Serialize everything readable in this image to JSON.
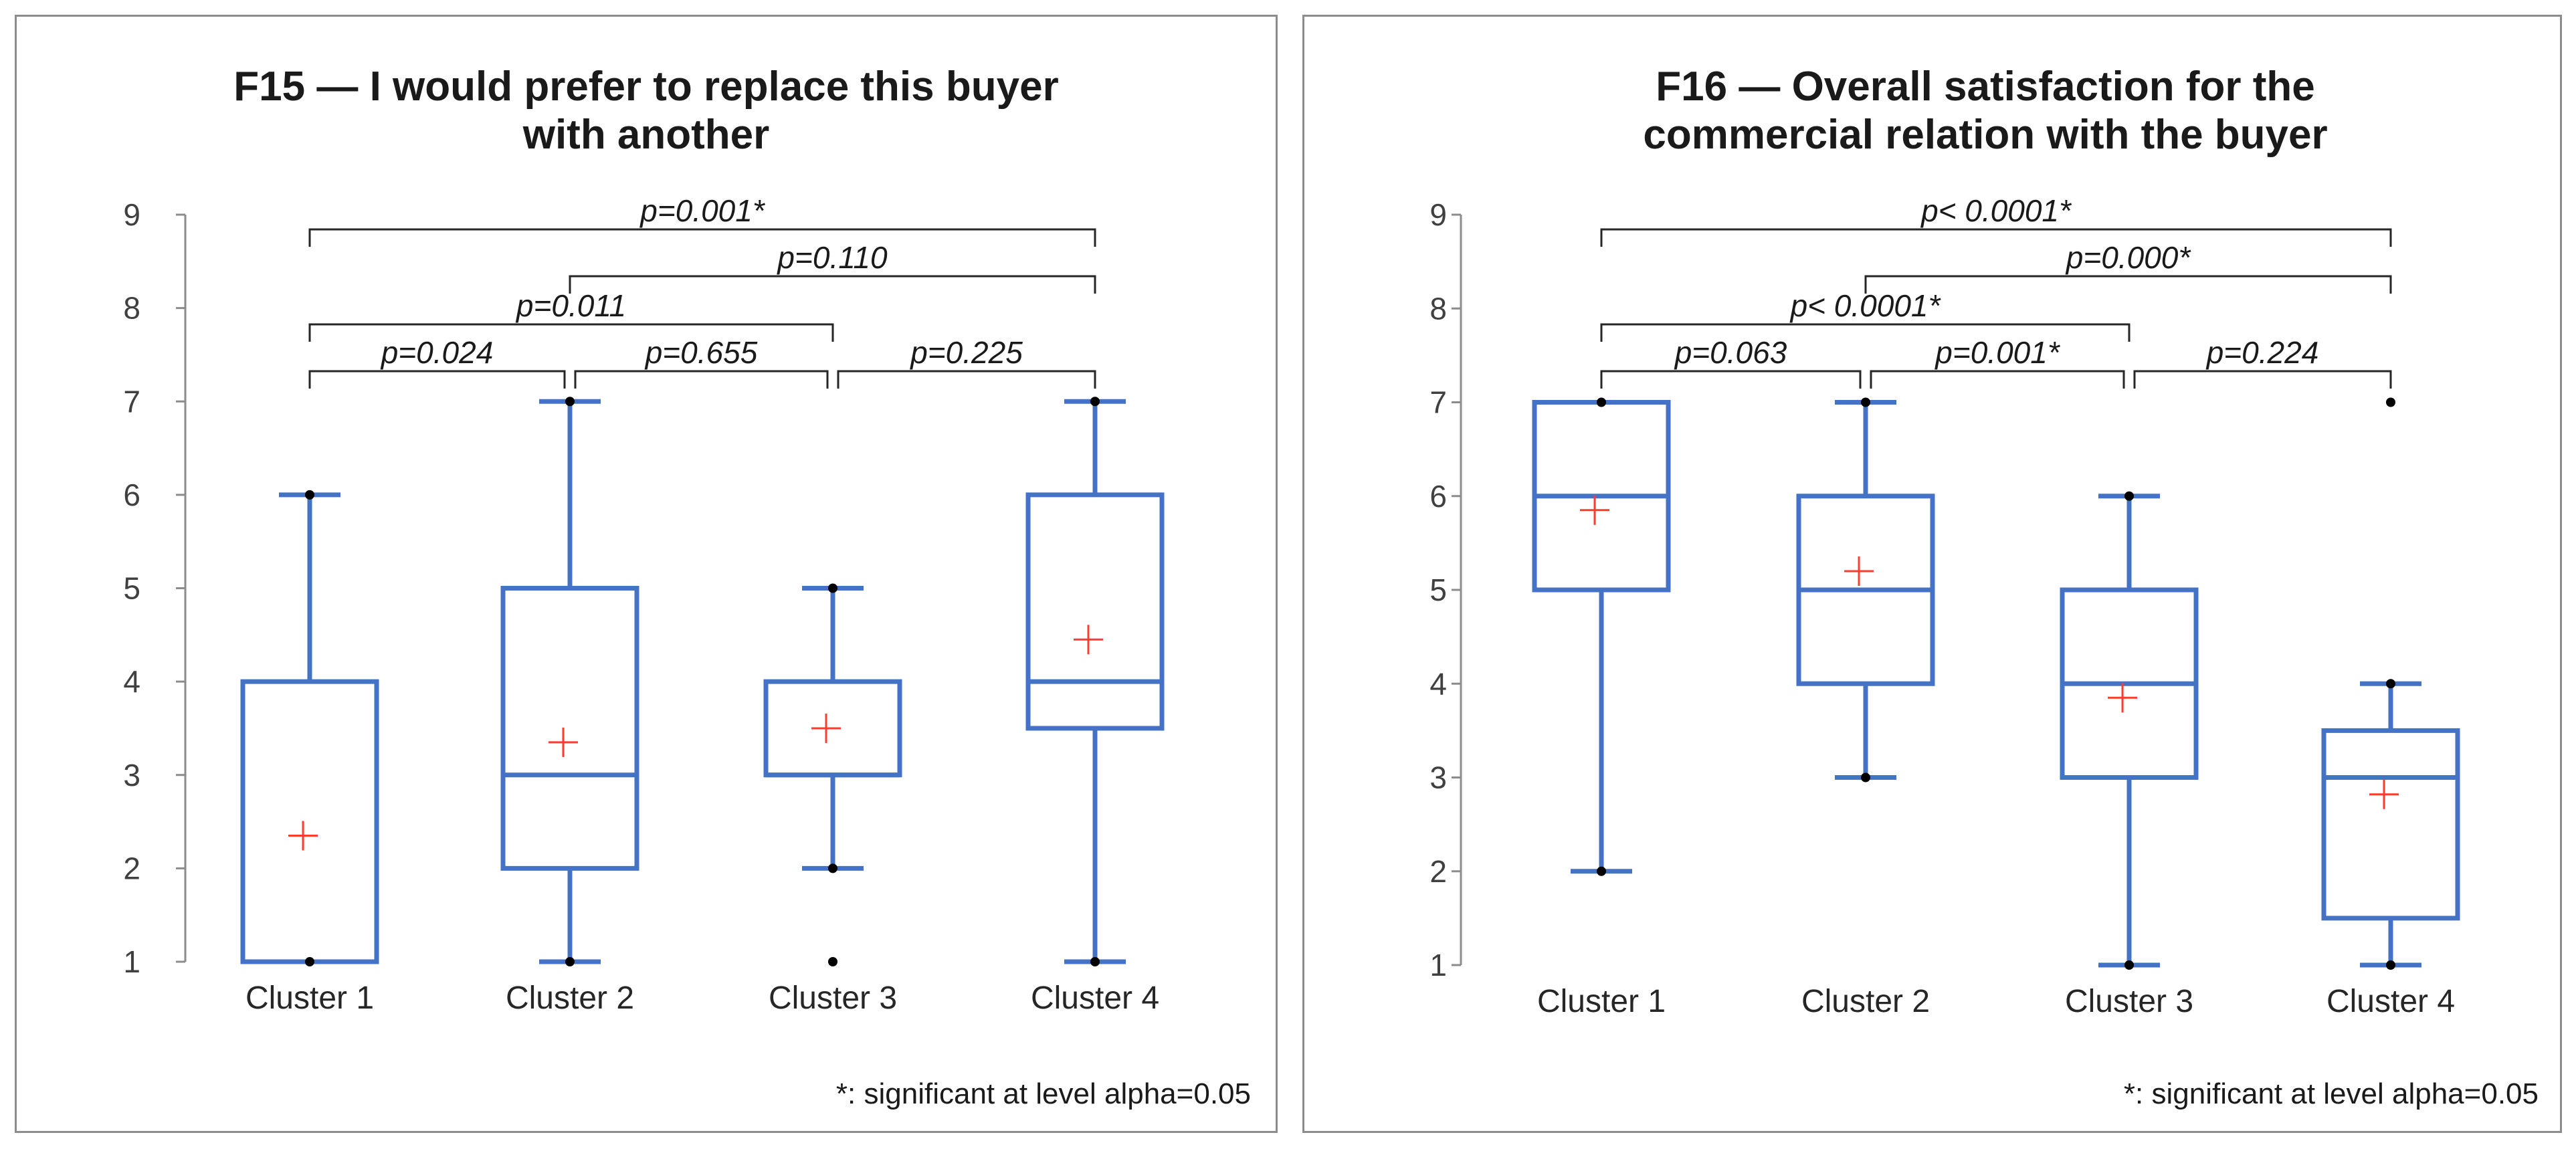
{
  "colors": {
    "box": "#4472C4",
    "mean": "#FF3B30",
    "points": "#000000",
    "axis": "#8c8c8c",
    "bracket": "#262626",
    "border": "#8c8c8c"
  },
  "chart_data": [
    {
      "type": "boxplot",
      "title_lines": [
        "F15 — I would prefer to replace this buyer",
        "with another"
      ],
      "ylim": [
        1,
        9
      ],
      "yticks": [
        "1",
        "2",
        "3",
        "4",
        "5",
        "6",
        "7",
        "8",
        "9"
      ],
      "categories": [
        "Cluster 1",
        "Cluster 2",
        "Cluster 3",
        "Cluster 4"
      ],
      "boxes": [
        {
          "name": "Cluster 1",
          "whisker_low": 1,
          "q1": 1,
          "median": 1,
          "q3": 4,
          "whisker_high": 6,
          "mean": 2.35,
          "outliers": []
        },
        {
          "name": "Cluster 2",
          "whisker_low": 1,
          "q1": 2,
          "median": 3,
          "q3": 5,
          "whisker_high": 7,
          "mean": 3.35,
          "outliers": []
        },
        {
          "name": "Cluster 3",
          "whisker_low": 2,
          "q1": 3,
          "median": 3,
          "q3": 4,
          "whisker_high": 5,
          "mean": 3.5,
          "outliers": [
            1
          ]
        },
        {
          "name": "Cluster 4",
          "whisker_low": 1,
          "q1": 3.5,
          "median": 4,
          "q3": 6,
          "whisker_high": 7,
          "mean": 4.45,
          "outliers": []
        }
      ],
      "comparisons": [
        {
          "from": 0,
          "to": 1,
          "label": "p=0.024"
        },
        {
          "from": 1,
          "to": 2,
          "label": "p=0.655"
        },
        {
          "from": 2,
          "to": 3,
          "label": "p=0.225"
        },
        {
          "from": 0,
          "to": 2,
          "label": "p=0.011"
        },
        {
          "from": 1,
          "to": 3,
          "label": "p=0.110"
        },
        {
          "from": 0,
          "to": 3,
          "label": "p=0.001*"
        }
      ],
      "footnote": "*: significant at level alpha=0.05"
    },
    {
      "type": "boxplot",
      "title_lines": [
        "F16 — Overall satisfaction for the",
        "commercial relation with the buyer"
      ],
      "ylim": [
        1,
        9
      ],
      "yticks": [
        "1",
        "2",
        "3",
        "4",
        "5",
        "6",
        "7",
        "8",
        "9"
      ],
      "categories": [
        "Cluster 1",
        "Cluster 2",
        "Cluster 3",
        "Cluster 4"
      ],
      "boxes": [
        {
          "name": "Cluster 1",
          "whisker_low": 2,
          "q1": 5,
          "median": 6,
          "q3": 7,
          "whisker_high": 7,
          "mean": 5.85,
          "outliers": []
        },
        {
          "name": "Cluster 2",
          "whisker_low": 3,
          "q1": 4,
          "median": 5,
          "q3": 6,
          "whisker_high": 7,
          "mean": 5.2,
          "outliers": []
        },
        {
          "name": "Cluster 3",
          "whisker_low": 1,
          "q1": 3,
          "median": 4,
          "q3": 5,
          "whisker_high": 6,
          "mean": 3.85,
          "outliers": []
        },
        {
          "name": "Cluster 4",
          "whisker_low": 1,
          "q1": 1.5,
          "median": 3,
          "q3": 3.5,
          "whisker_high": 4,
          "mean": 2.82,
          "outliers": [
            7
          ]
        }
      ],
      "comparisons": [
        {
          "from": 0,
          "to": 1,
          "label": "p=0.063"
        },
        {
          "from": 1,
          "to": 2,
          "label": "p=0.001*"
        },
        {
          "from": 2,
          "to": 3,
          "label": "p=0.224"
        },
        {
          "from": 0,
          "to": 2,
          "label": "p< 0.0001*"
        },
        {
          "from": 1,
          "to": 3,
          "label": "p=0.000*"
        },
        {
          "from": 0,
          "to": 3,
          "label": "p< 0.0001*"
        }
      ],
      "footnote": "*: significant at level alpha=0.05"
    }
  ]
}
